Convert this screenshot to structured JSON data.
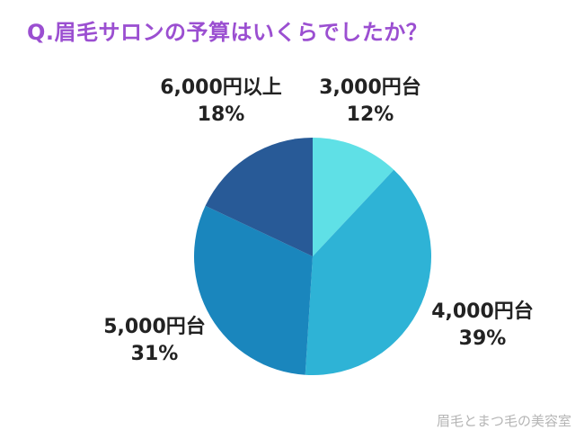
{
  "header": {
    "title": "Q.眉毛サロンの予算はいくらでしたか？"
  },
  "footer": {
    "watermark": "眉毛とまつ毛の美容室"
  },
  "chart_data": {
    "type": "pie",
    "title": "Q.眉毛サロンの予算はいくらでしたか？",
    "unit": "%",
    "start": "12 o'clock",
    "direction": "clockwise",
    "legend": "none (labels beside slices)",
    "slices": [
      {
        "label": "3,000円台",
        "value": 12,
        "value_text": "12%",
        "color": "#5fe0e6"
      },
      {
        "label": "4,000円台",
        "value": 39,
        "value_text": "39%",
        "color": "#2eb3d6"
      },
      {
        "label": "5,000円台",
        "value": 31,
        "value_text": "31%",
        "color": "#1a86bd"
      },
      {
        "label": "6,000円以上",
        "value": 18,
        "value_text": "18%",
        "color": "#285a97"
      }
    ]
  }
}
